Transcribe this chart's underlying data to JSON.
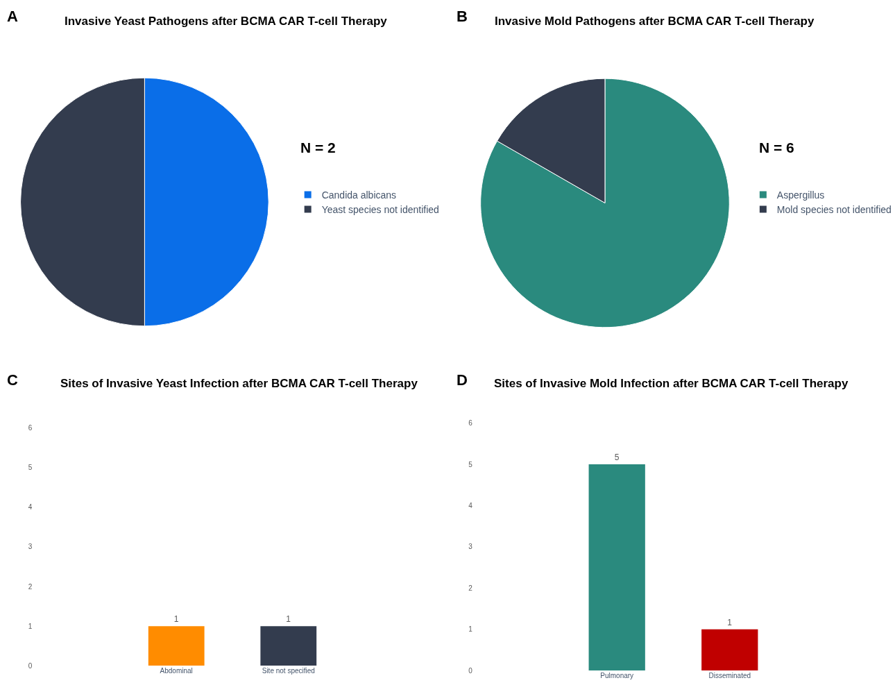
{
  "chart_data": [
    {
      "type": "pie",
      "title": "Invasive Yeast Pathogens after BCMA CAR T-cell Therapy",
      "annotations": [
        "A",
        "N = 2"
      ],
      "categories": [
        "Candida albicans",
        "Yeast species not identified"
      ],
      "values": [
        50,
        50
      ],
      "colors": [
        "#0a6ee8",
        "#333c4e"
      ],
      "legend": "right"
    },
    {
      "type": "pie",
      "title": "Invasive Mold Pathogens after BCMA CAR T-cell Therapy",
      "annotations": [
        "B",
        "N = 6"
      ],
      "categories": [
        "Aspergillus",
        "Mold species not identified"
      ],
      "values": [
        83.3,
        16.7
      ],
      "colors": [
        "#2a8a7e",
        "#333c4e"
      ],
      "legend": "right"
    },
    {
      "type": "bar",
      "title": "Sites of Invasive Yeast Infection after BCMA CAR T-cell Therapy",
      "annotations": [
        "C"
      ],
      "categories": [
        "Abdominal",
        "Site not specified"
      ],
      "values": [
        1,
        1
      ],
      "colors": [
        "#ff8c00",
        "#333c4e"
      ],
      "ylim": [
        0,
        6
      ],
      "yticks": [
        0,
        1,
        2,
        3,
        4,
        5,
        6
      ],
      "data_labels": true,
      "grid": false
    },
    {
      "type": "bar",
      "title": "Sites of Invasive Mold Infection after BCMA CAR T-cell Therapy",
      "annotations": [
        "D"
      ],
      "categories": [
        "Pulmonary",
        "Disseminated"
      ],
      "values": [
        5,
        1
      ],
      "colors": [
        "#2a8a7e",
        "#c00000"
      ],
      "ylim": [
        0,
        6
      ],
      "yticks": [
        0,
        1,
        2,
        3,
        4,
        5,
        6
      ],
      "data_labels": true,
      "grid": false
    }
  ]
}
